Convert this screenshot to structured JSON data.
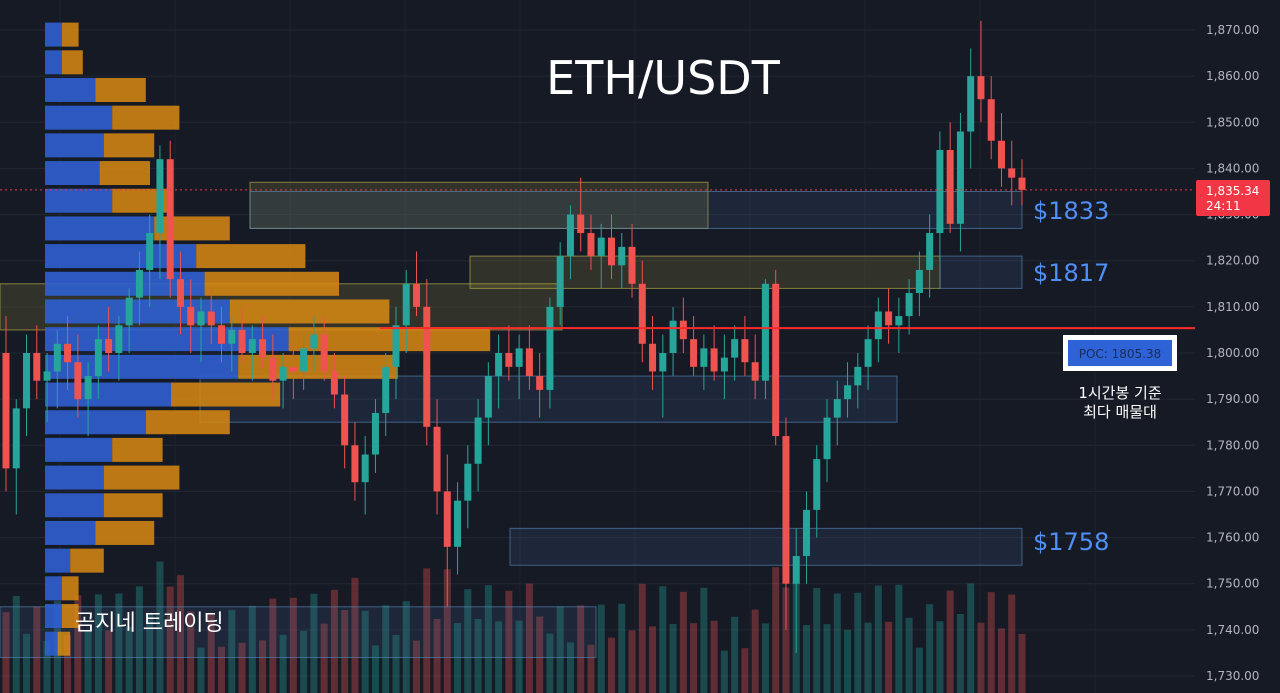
{
  "title": "ETH/USDT",
  "watermark": "곰지네 트레이딩",
  "price_tag": {
    "price": "1,835.34",
    "countdown": "24:11"
  },
  "poc_box": {
    "label": "POC: 1805.38",
    "note_line1": "1시간봉 기준",
    "note_line2": "최다 매물대"
  },
  "zone_labels": [
    "$1833",
    "$1817",
    "$1758"
  ],
  "colors": {
    "background": "#161a25",
    "up": "#26a69a",
    "down": "#ef5350",
    "vp_blue": "#2f5fd0",
    "vp_orange": "#d98a12",
    "poc_line": "#ff2b2b",
    "label_blue": "#4f8ff7",
    "price_tag": "#f23645"
  },
  "chart_data": {
    "type": "candlestick",
    "symbol": "ETH/USDT",
    "ylim": [
      1728,
      1876
    ],
    "y_ticks": [
      "1,870.00",
      "1,860.00",
      "1,850.00",
      "1,840.00",
      "1,830.00",
      "1,820.00",
      "1,810.00",
      "1,800.00",
      "1,790.00",
      "1,780.00",
      "1,770.00",
      "1,760.00",
      "1,750.00",
      "1,740.00",
      "1,730.00"
    ],
    "y_tick_values": [
      1870,
      1860,
      1850,
      1840,
      1830,
      1820,
      1810,
      1800,
      1790,
      1780,
      1770,
      1760,
      1750,
      1740,
      1730
    ],
    "current_price": 1835.34,
    "poc_price": 1805.38,
    "candles_ohlc": [
      [
        1800,
        1808,
        1770,
        1775
      ],
      [
        1775,
        1790,
        1765,
        1788
      ],
      [
        1788,
        1804,
        1782,
        1800
      ],
      [
        1800,
        1806,
        1790,
        1794
      ],
      [
        1794,
        1800,
        1785,
        1796
      ],
      [
        1796,
        1805,
        1788,
        1802
      ],
      [
        1802,
        1808,
        1792,
        1798
      ],
      [
        1798,
        1804,
        1786,
        1790
      ],
      [
        1790,
        1798,
        1782,
        1795
      ],
      [
        1795,
        1806,
        1790,
        1803
      ],
      [
        1803,
        1810,
        1796,
        1800
      ],
      [
        1800,
        1808,
        1794,
        1806
      ],
      [
        1806,
        1814,
        1800,
        1812
      ],
      [
        1812,
        1822,
        1806,
        1818
      ],
      [
        1818,
        1830,
        1810,
        1826
      ],
      [
        1826,
        1845,
        1816,
        1842
      ],
      [
        1842,
        1846,
        1812,
        1816
      ],
      [
        1816,
        1822,
        1804,
        1810
      ],
      [
        1810,
        1816,
        1800,
        1806
      ],
      [
        1806,
        1812,
        1798,
        1809
      ],
      [
        1809,
        1814,
        1802,
        1806
      ],
      [
        1806,
        1810,
        1798,
        1802
      ],
      [
        1802,
        1808,
        1796,
        1805
      ],
      [
        1805,
        1810,
        1798,
        1800
      ],
      [
        1800,
        1806,
        1794,
        1803
      ],
      [
        1803,
        1808,
        1797,
        1799
      ],
      [
        1799,
        1804,
        1790,
        1794
      ],
      [
        1794,
        1800,
        1788,
        1797
      ],
      [
        1797,
        1802,
        1790,
        1796
      ],
      [
        1796,
        1804,
        1792,
        1801
      ],
      [
        1801,
        1808,
        1796,
        1804
      ],
      [
        1804,
        1808,
        1794,
        1796
      ],
      [
        1796,
        1800,
        1788,
        1791
      ],
      [
        1791,
        1795,
        1775,
        1780
      ],
      [
        1780,
        1785,
        1768,
        1772
      ],
      [
        1772,
        1782,
        1765,
        1778
      ],
      [
        1778,
        1790,
        1774,
        1787
      ],
      [
        1787,
        1800,
        1782,
        1797
      ],
      [
        1797,
        1810,
        1790,
        1806
      ],
      [
        1806,
        1818,
        1800,
        1815
      ],
      [
        1815,
        1822,
        1808,
        1810
      ],
      [
        1810,
        1816,
        1780,
        1784
      ],
      [
        1784,
        1790,
        1765,
        1770
      ],
      [
        1770,
        1778,
        1745,
        1758
      ],
      [
        1758,
        1772,
        1752,
        1768
      ],
      [
        1768,
        1780,
        1762,
        1776
      ],
      [
        1776,
        1790,
        1770,
        1786
      ],
      [
        1786,
        1798,
        1780,
        1795
      ],
      [
        1795,
        1804,
        1788,
        1800
      ],
      [
        1800,
        1806,
        1794,
        1797
      ],
      [
        1797,
        1804,
        1790,
        1801
      ],
      [
        1801,
        1806,
        1792,
        1795
      ],
      [
        1795,
        1800,
        1786,
        1792
      ],
      [
        1792,
        1812,
        1788,
        1810
      ],
      [
        1810,
        1824,
        1806,
        1821
      ],
      [
        1821,
        1832,
        1816,
        1830
      ],
      [
        1830,
        1838,
        1822,
        1826
      ],
      [
        1826,
        1830,
        1818,
        1821
      ],
      [
        1821,
        1828,
        1814,
        1825
      ],
      [
        1825,
        1830,
        1816,
        1819
      ],
      [
        1819,
        1826,
        1814,
        1823
      ],
      [
        1823,
        1828,
        1812,
        1815
      ],
      [
        1815,
        1820,
        1798,
        1802
      ],
      [
        1802,
        1808,
        1792,
        1796
      ],
      [
        1796,
        1804,
        1786,
        1800
      ],
      [
        1800,
        1810,
        1795,
        1807
      ],
      [
        1807,
        1812,
        1800,
        1803
      ],
      [
        1803,
        1808,
        1795,
        1797
      ],
      [
        1797,
        1804,
        1792,
        1801
      ],
      [
        1801,
        1806,
        1794,
        1796
      ],
      [
        1796,
        1804,
        1790,
        1799
      ],
      [
        1799,
        1806,
        1794,
        1803
      ],
      [
        1803,
        1808,
        1795,
        1798
      ],
      [
        1798,
        1804,
        1790,
        1794
      ],
      [
        1794,
        1816,
        1790,
        1815
      ],
      [
        1815,
        1818,
        1780,
        1782
      ],
      [
        1782,
        1786,
        1740,
        1750
      ],
      [
        1750,
        1762,
        1735,
        1756
      ],
      [
        1756,
        1770,
        1750,
        1766
      ],
      [
        1766,
        1780,
        1760,
        1777
      ],
      [
        1777,
        1790,
        1772,
        1786
      ],
      [
        1786,
        1794,
        1780,
        1790
      ],
      [
        1790,
        1798,
        1786,
        1793
      ],
      [
        1793,
        1800,
        1788,
        1797
      ],
      [
        1797,
        1806,
        1792,
        1803
      ],
      [
        1803,
        1812,
        1798,
        1809
      ],
      [
        1809,
        1814,
        1802,
        1806
      ],
      [
        1806,
        1812,
        1800,
        1808
      ],
      [
        1808,
        1816,
        1804,
        1813
      ],
      [
        1813,
        1822,
        1808,
        1818
      ],
      [
        1818,
        1830,
        1812,
        1826
      ],
      [
        1826,
        1848,
        1820,
        1844
      ],
      [
        1844,
        1850,
        1826,
        1828
      ],
      [
        1828,
        1852,
        1822,
        1848
      ],
      [
        1848,
        1866,
        1840,
        1860
      ],
      [
        1860,
        1872,
        1850,
        1855
      ],
      [
        1855,
        1860,
        1842,
        1846
      ],
      [
        1846,
        1852,
        1836,
        1840
      ],
      [
        1840,
        1846,
        1832,
        1838
      ],
      [
        1838,
        1842,
        1832,
        1835.34
      ]
    ],
    "volume_profile_rows": [
      {
        "price": 1869,
        "buy": 0.04,
        "sell": 0.04
      },
      {
        "price": 1863,
        "buy": 0.04,
        "sell": 0.05
      },
      {
        "price": 1857,
        "buy": 0.12,
        "sell": 0.12
      },
      {
        "price": 1851,
        "buy": 0.16,
        "sell": 0.16
      },
      {
        "price": 1845,
        "buy": 0.14,
        "sell": 0.12
      },
      {
        "price": 1839,
        "buy": 0.13,
        "sell": 0.12
      },
      {
        "price": 1833,
        "buy": 0.16,
        "sell": 0.14
      },
      {
        "price": 1827,
        "buy": 0.26,
        "sell": 0.18
      },
      {
        "price": 1821,
        "buy": 0.36,
        "sell": 0.26
      },
      {
        "price": 1815,
        "buy": 0.38,
        "sell": 0.32
      },
      {
        "price": 1809,
        "buy": 0.44,
        "sell": 0.38
      },
      {
        "price": 1803,
        "buy": 0.58,
        "sell": 0.48
      },
      {
        "price": 1797,
        "buy": 0.46,
        "sell": 0.38
      },
      {
        "price": 1791,
        "buy": 0.3,
        "sell": 0.26
      },
      {
        "price": 1785,
        "buy": 0.24,
        "sell": 0.2
      },
      {
        "price": 1779,
        "buy": 0.16,
        "sell": 0.12
      },
      {
        "price": 1773,
        "buy": 0.14,
        "sell": 0.18
      },
      {
        "price": 1767,
        "buy": 0.14,
        "sell": 0.14
      },
      {
        "price": 1761,
        "buy": 0.12,
        "sell": 0.14
      },
      {
        "price": 1755,
        "buy": 0.06,
        "sell": 0.08
      },
      {
        "price": 1749,
        "buy": 0.04,
        "sell": 0.04
      },
      {
        "price": 1743,
        "buy": 0.04,
        "sell": 0.04
      },
      {
        "price": 1737,
        "buy": 0.03,
        "sell": 0.03
      }
    ],
    "zones": [
      {
        "low": 1827,
        "high": 1837,
        "color": "yellow"
      },
      {
        "low": 1827,
        "high": 1835,
        "color": "blue"
      },
      {
        "low": 1814,
        "high": 1821,
        "color": "yellow"
      },
      {
        "low": 1814,
        "high": 1821,
        "color": "blue"
      },
      {
        "low": 1805,
        "high": 1815,
        "color": "yellow"
      },
      {
        "low": 1785,
        "high": 1795,
        "color": "blue"
      },
      {
        "low": 1754,
        "high": 1762,
        "color": "blue"
      },
      {
        "low": 1734,
        "high": 1745,
        "color": "blue"
      }
    ]
  }
}
